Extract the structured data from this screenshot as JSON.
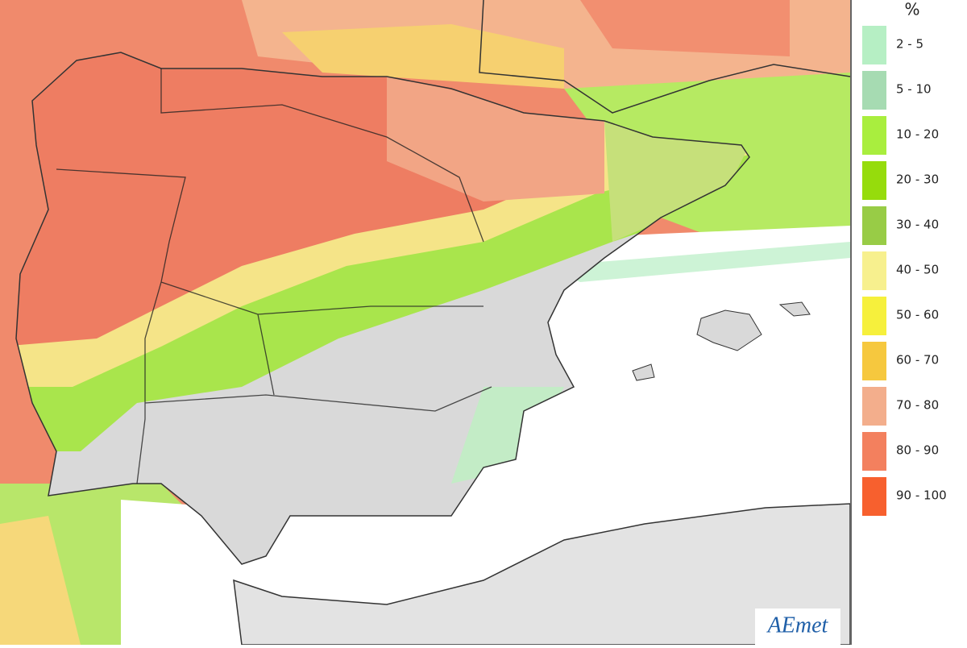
{
  "legend": {
    "unit": "%",
    "items": [
      {
        "label": "2 - 5",
        "color": "#b6efc4"
      },
      {
        "label": "5 - 10",
        "color": "#a6dbb2"
      },
      {
        "label": "10 - 20",
        "color": "#a9ee3e"
      },
      {
        "label": "20 - 30",
        "color": "#96dc0c"
      },
      {
        "label": "30 - 40",
        "color": "#98cc46"
      },
      {
        "label": "40 - 50",
        "color": "#f7f08e"
      },
      {
        "label": "50 - 60",
        "color": "#f6f03c"
      },
      {
        "label": "60 - 70",
        "color": "#f6c83e"
      },
      {
        "label": "70 - 80",
        "color": "#f3ae8c"
      },
      {
        "label": "80 - 90",
        "color": "#f3805e"
      },
      {
        "label": "90 - 100",
        "color": "#f7602e"
      }
    ]
  },
  "logo": "AEmet"
}
